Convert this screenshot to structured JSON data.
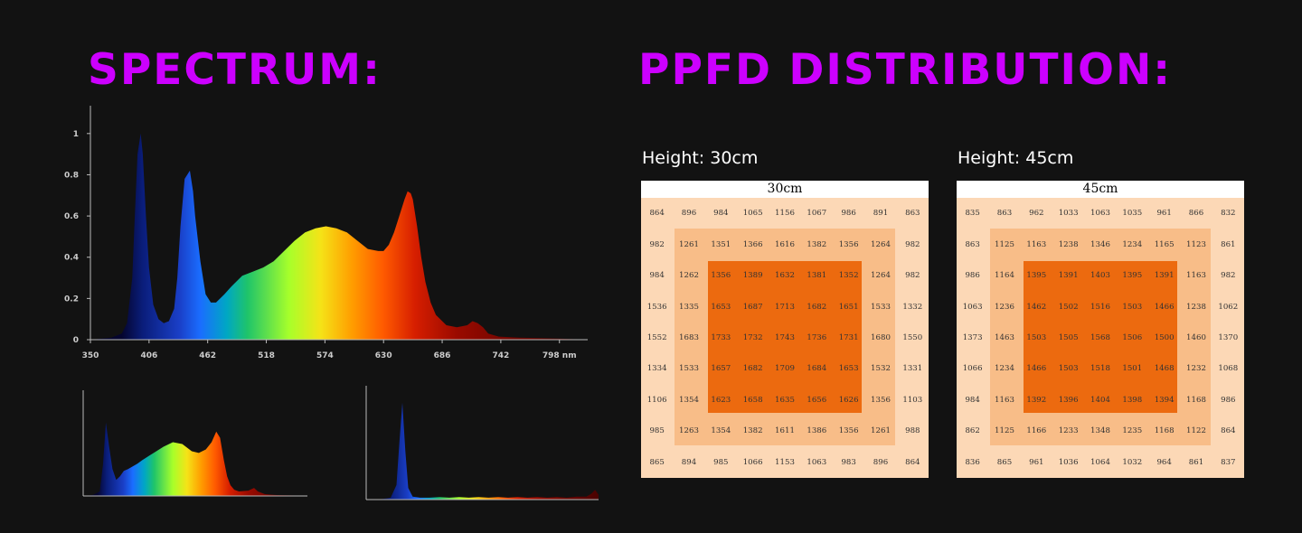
{
  "headings": {
    "spectrum": "SPECTRUM:",
    "ppfd": "PPFD DISTRIBUTION:"
  },
  "colors": {
    "heading": "#cc00ff",
    "background": "#121212",
    "grid_outer": "#fcd8b6",
    "grid_mid": "#f8bd88",
    "grid_core": "#ec6a0f"
  },
  "chart_data": [
    {
      "type": "area",
      "x_ticks": [
        "350",
        "406",
        "462",
        "518",
        "574",
        "630",
        "686",
        "742",
        "798 nm"
      ],
      "y_ticks": [
        "0",
        "0.2",
        "0.4",
        "0.6",
        "0.8",
        "1"
      ],
      "xlim": [
        350,
        825
      ],
      "ylim": [
        0,
        1.1
      ],
      "series": [
        {
          "x": [
            350,
            360,
            370,
            380,
            385,
            390,
            392,
            395,
            398,
            400,
            403,
            406,
            410,
            415,
            420,
            425,
            430,
            433,
            436,
            440,
            445,
            448,
            450,
            455,
            460,
            465,
            470,
            478,
            485,
            495,
            505,
            515,
            525,
            535,
            545,
            555,
            565,
            575,
            585,
            595,
            605,
            615,
            625,
            630,
            635,
            640,
            645,
            650,
            653,
            656,
            658,
            662,
            666,
            670,
            675,
            680,
            690,
            700,
            710,
            715,
            720,
            725,
            730,
            740,
            760,
            780,
            800,
            825
          ],
          "y": [
            0,
            0.005,
            0.01,
            0.03,
            0.08,
            0.3,
            0.55,
            0.9,
            1.0,
            0.9,
            0.6,
            0.35,
            0.17,
            0.1,
            0.08,
            0.09,
            0.15,
            0.3,
            0.55,
            0.78,
            0.82,
            0.72,
            0.6,
            0.38,
            0.22,
            0.18,
            0.18,
            0.22,
            0.26,
            0.31,
            0.33,
            0.35,
            0.38,
            0.43,
            0.48,
            0.52,
            0.54,
            0.55,
            0.54,
            0.52,
            0.48,
            0.44,
            0.43,
            0.43,
            0.46,
            0.52,
            0.6,
            0.68,
            0.72,
            0.71,
            0.68,
            0.55,
            0.4,
            0.28,
            0.18,
            0.12,
            0.07,
            0.06,
            0.07,
            0.09,
            0.08,
            0.06,
            0.03,
            0.015,
            0.01,
            0.008,
            0.005,
            0
          ]
        }
      ]
    },
    {
      "type": "area",
      "xlim": [
        350,
        825
      ],
      "ylim": [
        0,
        1.1
      ],
      "series": [
        {
          "x": [
            350,
            370,
            385,
            392,
            398,
            405,
            412,
            420,
            428,
            436,
            445,
            455,
            465,
            475,
            490,
            505,
            520,
            540,
            560,
            580,
            595,
            610,
            622,
            632,
            640,
            648,
            655,
            662,
            670,
            680,
            700,
            712,
            720,
            735,
            760,
            800,
            825
          ],
          "y": [
            0,
            0.01,
            0.05,
            0.35,
            0.82,
            0.55,
            0.3,
            0.18,
            0.22,
            0.28,
            0.3,
            0.33,
            0.36,
            0.4,
            0.45,
            0.5,
            0.55,
            0.6,
            0.58,
            0.5,
            0.48,
            0.52,
            0.6,
            0.72,
            0.65,
            0.4,
            0.22,
            0.12,
            0.07,
            0.05,
            0.06,
            0.09,
            0.05,
            0.02,
            0.01,
            0.005,
            0
          ]
        }
      ]
    },
    {
      "type": "area",
      "xlim": [
        350,
        825
      ],
      "ylim": [
        0,
        1.1
      ],
      "series": [
        {
          "x": [
            350,
            380,
            400,
            412,
            418,
            424,
            430,
            436,
            445,
            460,
            480,
            500,
            520,
            540,
            560,
            580,
            600,
            620,
            640,
            660,
            680,
            700,
            720,
            740,
            760,
            780,
            800,
            810,
            818,
            825
          ],
          "y": [
            0,
            0.005,
            0.02,
            0.15,
            0.6,
            1.0,
            0.5,
            0.12,
            0.03,
            0.02,
            0.02,
            0.025,
            0.02,
            0.025,
            0.02,
            0.025,
            0.02,
            0.025,
            0.02,
            0.025,
            0.02,
            0.025,
            0.02,
            0.025,
            0.02,
            0.03,
            0.03,
            0.06,
            0.1,
            0.05
          ]
        }
      ]
    },
    {
      "type": "heatmap",
      "title": "30cm",
      "label": "Height: 30cm",
      "values": [
        [
          "864",
          "896",
          "984",
          "1065",
          "1156",
          "1067",
          "986",
          "891",
          "863"
        ],
        [
          "982",
          "1261",
          "1351",
          "1366",
          "1616",
          "1382",
          "1356",
          "1264",
          "982"
        ],
        [
          "984",
          "1262",
          "1356",
          "1389",
          "1632",
          "1381",
          "1352",
          "1264",
          "982"
        ],
        [
          "1536",
          "1335",
          "1653",
          "1687",
          "1713",
          "1682",
          "1651",
          "1533",
          "1332"
        ],
        [
          "1552",
          "1683",
          "1733",
          "1732",
          "1743",
          "1736",
          "1731",
          "1680",
          "1550"
        ],
        [
          "1334",
          "1533",
          "1657",
          "1682",
          "1709",
          "1684",
          "1653",
          "1532",
          "1331"
        ],
        [
          "1106",
          "1354",
          "1623",
          "1658",
          "1635",
          "1656",
          "1626",
          "1356",
          "1103"
        ],
        [
          "985",
          "1263",
          "1354",
          "1382",
          "1611",
          "1386",
          "1356",
          "1261",
          "988"
        ],
        [
          "865",
          "894",
          "985",
          "1066",
          "1153",
          "1063",
          "983",
          "896",
          "864"
        ]
      ]
    },
    {
      "type": "heatmap",
      "title": "45cm",
      "label": "Height: 45cm",
      "values": [
        [
          "835",
          "863",
          "962",
          "1033",
          "1063",
          "1035",
          "961",
          "866",
          "832"
        ],
        [
          "863",
          "1125",
          "1163",
          "1238",
          "1346",
          "1234",
          "1165",
          "1123",
          "861"
        ],
        [
          "986",
          "1164",
          "1395",
          "1391",
          "1403",
          "1395",
          "1391",
          "1163",
          "982"
        ],
        [
          "1063",
          "1236",
          "1462",
          "1502",
          "1516",
          "1503",
          "1466",
          "1238",
          "1062"
        ],
        [
          "1373",
          "1463",
          "1503",
          "1505",
          "1568",
          "1506",
          "1500",
          "1460",
          "1370"
        ],
        [
          "1066",
          "1234",
          "1466",
          "1503",
          "1518",
          "1501",
          "1468",
          "1232",
          "1068"
        ],
        [
          "984",
          "1163",
          "1392",
          "1396",
          "1404",
          "1398",
          "1394",
          "1168",
          "986"
        ],
        [
          "862",
          "1125",
          "1166",
          "1233",
          "1348",
          "1235",
          "1168",
          "1122",
          "864"
        ],
        [
          "836",
          "865",
          "961",
          "1036",
          "1064",
          "1032",
          "964",
          "861",
          "837"
        ]
      ]
    }
  ]
}
